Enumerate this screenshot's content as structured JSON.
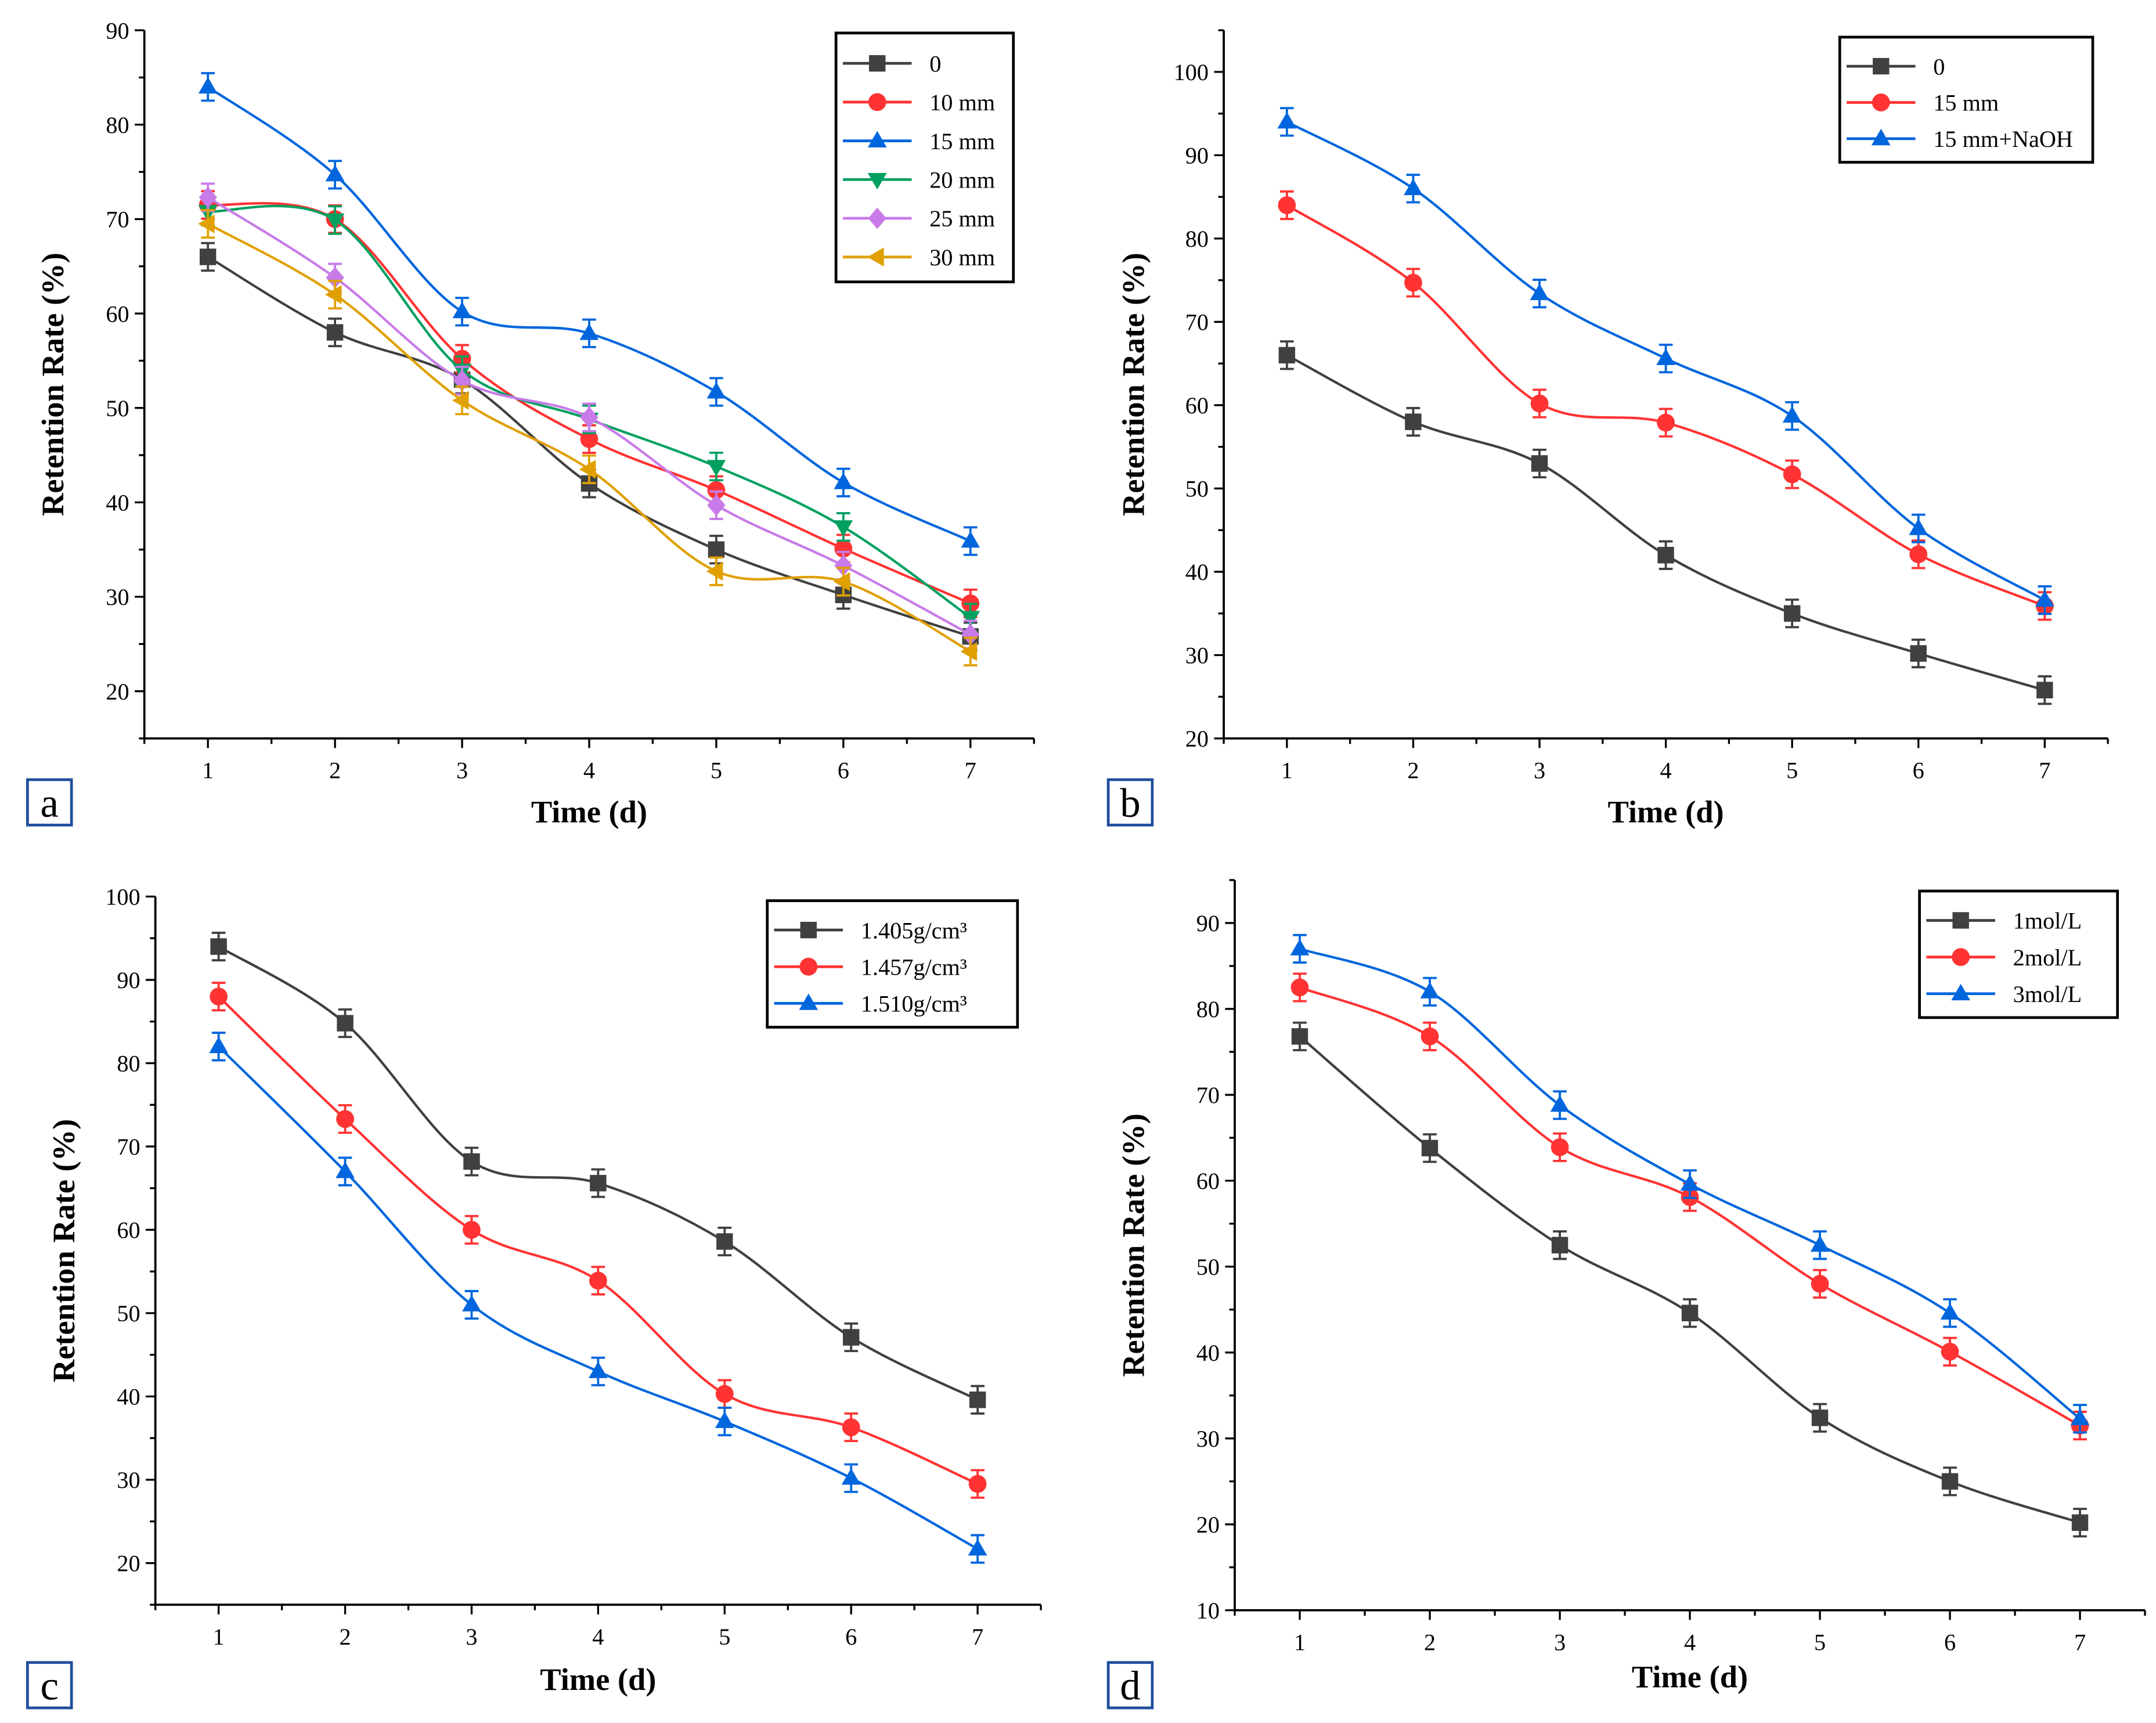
{
  "colors": {
    "black": "#404040",
    "red": "#ff3333",
    "blue": "#0066dd",
    "green": "#00a060",
    "purple": "#c87be8",
    "orange": "#e0a000",
    "panel_box": "#1f4e9c"
  },
  "chart_data": [
    {
      "panel": "a",
      "type": "line",
      "xlabel": "Time (d)",
      "ylabel": "Retention Rate (%)",
      "x": [
        1,
        2,
        3,
        4,
        5,
        6,
        7
      ],
      "xlim": [
        0.5,
        7.5
      ],
      "ylim": [
        15,
        90
      ],
      "yticks": [
        20,
        30,
        40,
        50,
        60,
        70,
        80,
        90
      ],
      "legend_position": "top-right",
      "grid": false,
      "series": [
        {
          "name": "0",
          "color": "#404040",
          "marker": "square",
          "values": [
            66,
            58,
            53,
            42,
            35,
            30.2,
            25.8
          ]
        },
        {
          "name": "10  mm",
          "color": "#ff3333",
          "marker": "circle",
          "values": [
            71.5,
            70,
            55.2,
            46.7,
            41.3,
            35.1,
            29.3
          ]
        },
        {
          "name": "15  mm",
          "color": "#0066dd",
          "marker": "triangle-up",
          "values": [
            84,
            74.7,
            60.2,
            57.9,
            51.7,
            42.1,
            35.9
          ]
        },
        {
          "name": "20  mm",
          "color": "#00a060",
          "marker": "triangle-down",
          "values": [
            70.8,
            69.9,
            54,
            48.8,
            43.8,
            37.4,
            27.8
          ]
        },
        {
          "name": "25  mm",
          "color": "#c87be8",
          "marker": "diamond",
          "values": [
            72.3,
            63.8,
            52.9,
            49,
            39.7,
            33.3,
            26
          ]
        },
        {
          "name": "30  mm",
          "color": "#e0a000",
          "marker": "triangle-left",
          "values": [
            69.5,
            62,
            50.8,
            43.5,
            32.7,
            31.6,
            24.2
          ]
        }
      ]
    },
    {
      "panel": "b",
      "type": "line",
      "xlabel": "Time (d)",
      "ylabel": "Retention Rate (%)",
      "x": [
        1,
        2,
        3,
        4,
        5,
        6,
        7
      ],
      "xlim": [
        0.5,
        7.5
      ],
      "ylim": [
        20,
        105
      ],
      "yticks": [
        20,
        30,
        40,
        50,
        60,
        70,
        80,
        90,
        100
      ],
      "legend_position": "top-right",
      "grid": false,
      "series": [
        {
          "name": "0",
          "color": "#404040",
          "marker": "square",
          "values": [
            66,
            58,
            53,
            42,
            35,
            30.2,
            25.8
          ]
        },
        {
          "name": "15  mm",
          "color": "#ff3333",
          "marker": "circle",
          "values": [
            84,
            74.7,
            60.2,
            57.9,
            51.7,
            42.1,
            35.9
          ]
        },
        {
          "name": "15  mm+NaOH",
          "color": "#0066dd",
          "marker": "triangle-up",
          "values": [
            94,
            86,
            73.4,
            65.6,
            58.7,
            45.2,
            36.6
          ]
        }
      ]
    },
    {
      "panel": "c",
      "type": "line",
      "xlabel": "Time (d)",
      "ylabel": "Retention Rate (%)",
      "x": [
        1,
        2,
        3,
        4,
        5,
        6,
        7
      ],
      "xlim": [
        0.5,
        7.5
      ],
      "ylim": [
        15,
        100
      ],
      "yticks": [
        20,
        30,
        40,
        50,
        60,
        70,
        80,
        90,
        100
      ],
      "legend_position": "top-right",
      "grid": false,
      "series": [
        {
          "name": "1.405g/cm³",
          "color": "#404040",
          "marker": "square",
          "values": [
            94,
            84.8,
            68.2,
            65.6,
            58.6,
            47.1,
            39.6
          ]
        },
        {
          "name": "1.457g/cm³",
          "color": "#ff3333",
          "marker": "circle",
          "values": [
            88,
            73.3,
            60,
            53.9,
            40.3,
            36.3,
            29.5
          ]
        },
        {
          "name": "1.510g/cm³",
          "color": "#0066dd",
          "marker": "triangle-up",
          "values": [
            82,
            67,
            51,
            43,
            37,
            30.2,
            21.7
          ]
        }
      ]
    },
    {
      "panel": "d",
      "type": "line",
      "xlabel": "Time (d)",
      "ylabel": "Retention Rate (%)",
      "x": [
        1,
        2,
        3,
        4,
        5,
        6,
        7
      ],
      "xlim": [
        0.5,
        7.5
      ],
      "ylim": [
        10,
        95
      ],
      "yticks": [
        10,
        20,
        30,
        40,
        50,
        60,
        70,
        80,
        90
      ],
      "legend_position": "top-right",
      "grid": false,
      "series": [
        {
          "name": "1mol/L",
          "color": "#404040",
          "marker": "square",
          "values": [
            76.8,
            63.8,
            52.5,
            44.6,
            32.4,
            25,
            20.2
          ]
        },
        {
          "name": "2mol/L",
          "color": "#ff3333",
          "marker": "circle",
          "values": [
            82.5,
            76.8,
            63.9,
            58.1,
            48,
            40.1,
            31.5
          ]
        },
        {
          "name": "3mol/L",
          "color": "#0066dd",
          "marker": "triangle-up",
          "values": [
            87,
            82,
            68.8,
            59.6,
            52.5,
            44.6,
            32.3
          ]
        }
      ]
    }
  ]
}
